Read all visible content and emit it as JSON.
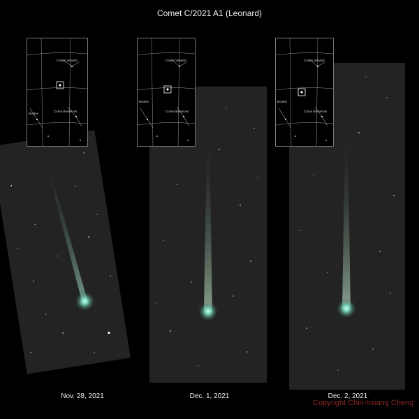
{
  "title": "Comet C/2021 A1 (Leonard)",
  "panels": [
    {
      "date": "Nov. 28, 2021",
      "chart_labels": {
        "top": "Canes Venatici",
        "left": "Bootes",
        "right": "Coma Berenices"
      }
    },
    {
      "date": "Dec. 1, 2021",
      "chart_labels": {
        "top": "Canes Venatici",
        "left": "Bootes",
        "right": "Coma Berenices"
      }
    },
    {
      "date": "Dec. 2, 2021",
      "chart_labels": {
        "top": "Canes Venatici",
        "left": "Bootes",
        "right": "Coma Berenices"
      }
    }
  ],
  "copyright": "Copyright Chin-hsiang Cheng",
  "colors": {
    "sky": "#232323",
    "comet_head": "#7fe0c4",
    "comet_tail": "#a8c8b0",
    "copyright": "#8a2828"
  }
}
